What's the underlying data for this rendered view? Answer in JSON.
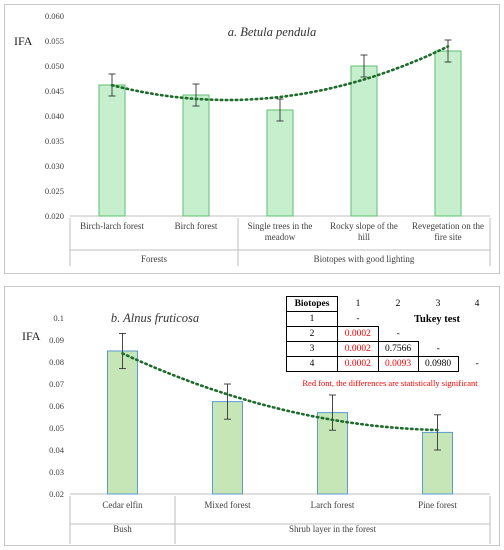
{
  "chart_data": [
    {
      "type": "bar",
      "title": "a. Betula pendula",
      "ylabel": "IFA",
      "ylim": [
        0.02,
        0.06
      ],
      "yticks": [
        "0.020",
        "0.025",
        "0.030",
        "0.035",
        "0.040",
        "0.045",
        "0.050",
        "0.055",
        "0.060"
      ],
      "categories": [
        "Birch-larch forest",
        "Birch forest",
        "Single trees in the meadow",
        "Rocky slope of the hill",
        "Revegetation on the fire site"
      ],
      "values": [
        0.0462,
        0.0442,
        0.0412,
        0.05,
        0.053
      ],
      "errors": [
        0.0022,
        0.0022,
        0.0022,
        0.0022,
        0.0022
      ],
      "trendline": "polynomial, dotted",
      "groups": [
        {
          "label": "Forests",
          "categories": [
            0,
            1
          ]
        },
        {
          "label": "Biotopes with good lighting",
          "categories": [
            2,
            3,
            4
          ]
        }
      ],
      "colors": {
        "bar_fill": "#c6efce",
        "bar_stroke": "#5fbf6f",
        "trend": "#1f6b2c"
      }
    },
    {
      "type": "bar",
      "title": "b. Alnus fruticosa",
      "ylabel": "IFA",
      "ylim": [
        0.02,
        0.1
      ],
      "yticks": [
        "0.02",
        "0.03",
        "0.04",
        "0.05",
        "0.06",
        "0.07",
        "0.08",
        "0.09",
        "0.1"
      ],
      "categories": [
        "Cedar elfin",
        "Mixed forest",
        "Larch forest",
        "Pine forest"
      ],
      "values": [
        0.085,
        0.062,
        0.057,
        0.048
      ],
      "errors": [
        0.008,
        0.008,
        0.008,
        0.008
      ],
      "trendline": "polynomial, dotted",
      "groups": [
        {
          "label": "Bush",
          "categories": [
            0
          ]
        },
        {
          "label": "Shrub layer in the forest",
          "categories": [
            1,
            2,
            3
          ]
        }
      ],
      "colors": {
        "bar_fill": "#c6e6b8",
        "bar_stroke": "#5a9bd5",
        "trend": "#1f6b2c"
      }
    }
  ],
  "tukey_table": {
    "corner": "Biotopes",
    "columns": [
      "1",
      "2",
      "3",
      "4"
    ],
    "caption": "Tukey test",
    "rows": [
      {
        "label": "1",
        "cells": [
          "-",
          "",
          "",
          ""
        ]
      },
      {
        "label": "2",
        "cells": [
          "0.0002",
          "-",
          "",
          ""
        ]
      },
      {
        "label": "3",
        "cells": [
          "0.0002",
          "0.7566",
          "-",
          ""
        ]
      },
      {
        "label": "4",
        "cells": [
          "0.0002",
          "0.0093",
          "0.0980",
          "-"
        ]
      }
    ],
    "note": "Red font, the differences are statistically significant",
    "colors": {
      "significant": "#ff0000"
    }
  }
}
